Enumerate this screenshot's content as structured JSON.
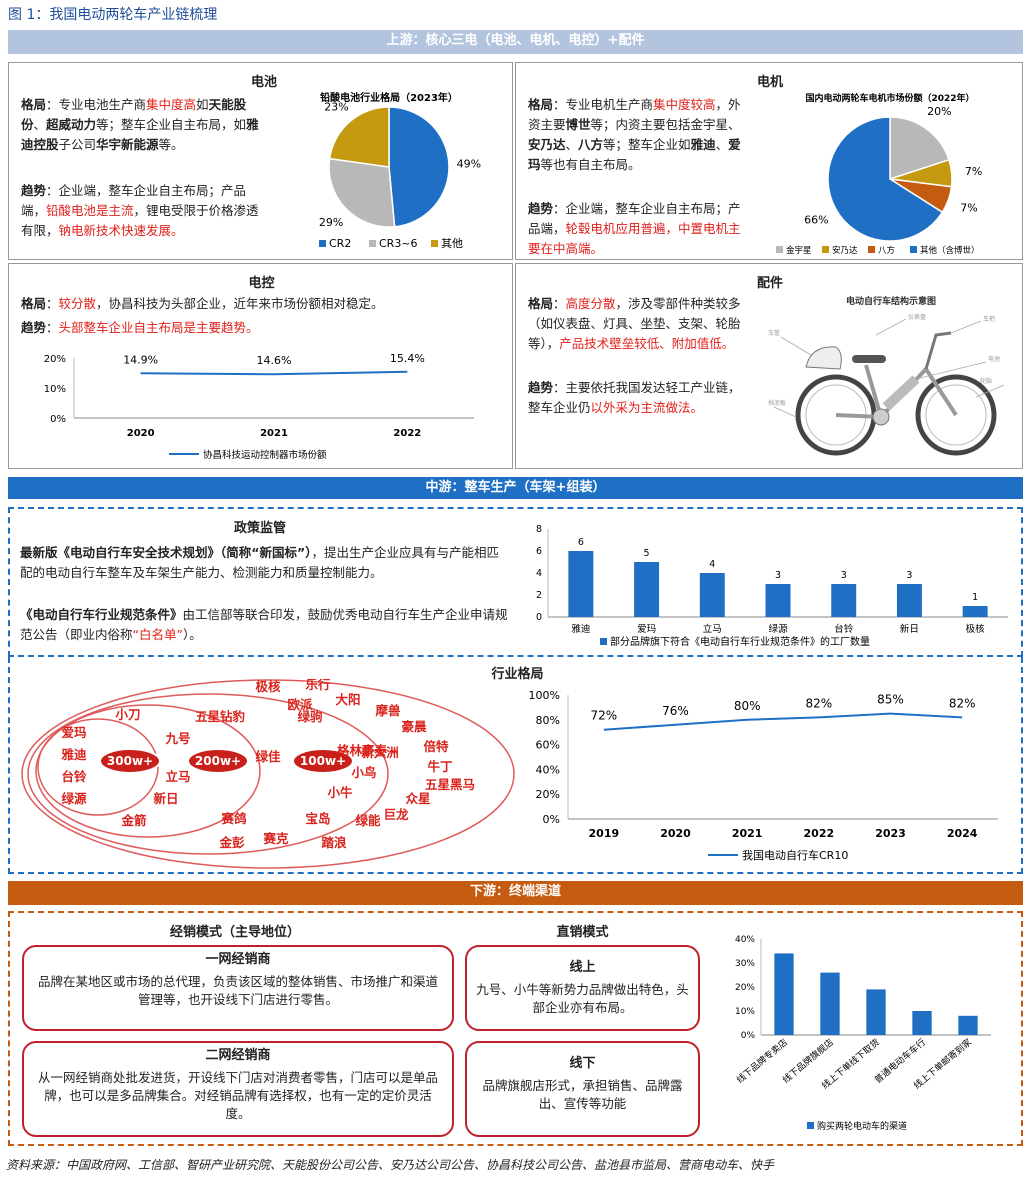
{
  "figure_title": "图 1：我国电动两轮车产业链梳理",
  "colors": {
    "blue": "#1f6fc5",
    "orange": "#c55a11",
    "gold": "#c59a10",
    "grey": "#b8b8b8",
    "red": "#e0201b"
  },
  "upstream": {
    "header": "上游：核心三电（电池、电机、电控）+配件",
    "battery": {
      "title": "电池",
      "p1": [
        {
          "t": "格局",
          "b": true
        },
        {
          "t": "：专业电池生产商"
        },
        {
          "t": "集中度高",
          "r": true
        },
        {
          "t": "如"
        },
        {
          "t": "天能股份",
          "b": true
        },
        {
          "t": "、"
        },
        {
          "t": "超威动力",
          "b": true
        },
        {
          "t": "等；整车企业自主布局，如"
        },
        {
          "t": "雅迪控股",
          "b": true
        },
        {
          "t": "子公司"
        },
        {
          "t": "华宇新能源",
          "b": true
        },
        {
          "t": "等。"
        }
      ],
      "p2": [
        {
          "t": "趋势",
          "b": true
        },
        {
          "t": "：企业端，整车企业自主布局；产品端，"
        },
        {
          "t": "铅酸电池是主流",
          "r": true
        },
        {
          "t": "，锂电受限于价格渗透有限，"
        },
        {
          "t": "钠电新技术快速发展。",
          "r": true
        }
      ]
    },
    "motor": {
      "title": "电机",
      "p1": [
        {
          "t": "格局",
          "b": true
        },
        {
          "t": "：专业电机生产商"
        },
        {
          "t": "集中度较高",
          "r": true
        },
        {
          "t": "，外资主要"
        },
        {
          "t": "博世",
          "b": true
        },
        {
          "t": "等；内资主要包括金宇星、"
        },
        {
          "t": "安乃达",
          "b": true
        },
        {
          "t": "、"
        },
        {
          "t": "八方",
          "b": true
        },
        {
          "t": "等；整车企业如"
        },
        {
          "t": "雅迪",
          "b": true
        },
        {
          "t": "、"
        },
        {
          "t": "爱玛",
          "b": true
        },
        {
          "t": "等也有自主布局。"
        }
      ],
      "p2": [
        {
          "t": "趋势",
          "b": true
        },
        {
          "t": "：企业端，整车企业自主布局；产品端，"
        },
        {
          "t": "轮毂电机应用普遍，中置电机主要在中高端。",
          "r": true
        }
      ]
    },
    "controller": {
      "title": "电控",
      "p1": [
        {
          "t": "格局",
          "b": true
        },
        {
          "t": "："
        },
        {
          "t": "较分散",
          "r": true
        },
        {
          "t": "，协昌科技为头部企业，近年来市场份额相对稳定。"
        }
      ],
      "p2": [
        {
          "t": "趋势",
          "b": true
        },
        {
          "t": "："
        },
        {
          "t": "头部整车企业自主布局是主要趋势。",
          "r": true
        }
      ]
    },
    "parts": {
      "title": "配件",
      "p1": [
        {
          "t": "格局",
          "b": true
        },
        {
          "t": "："
        },
        {
          "t": "高度分散",
          "r": true
        },
        {
          "t": "，涉及零部件种类较多（如仪表盘、灯具、坐垫、支架、轮胎等），"
        },
        {
          "t": "产品技术壁垒较低、附加值低。",
          "r": true
        }
      ],
      "p2": [
        {
          "t": "趋势",
          "b": true
        },
        {
          "t": "：主要依托我国发达轻工产业链，整车企业仍"
        },
        {
          "t": "以外采为主流做法。",
          "r": true
        }
      ],
      "image_title": "电动自行车结构示意图"
    }
  },
  "midstream": {
    "header": "中游：整车生产（车架+组装）",
    "policy": {
      "title": "政策监管",
      "p1": [
        {
          "t": "最新版《电动自行车安全技术规划》（简称“新国标”）",
          "b": true
        },
        {
          "t": "，提出生产企业应具有与产能相匹配的电动自行车整车及车架生产能力、检测能力和质量控制能力。"
        }
      ],
      "p2": [
        {
          "t": "《电动自行车行业规范条件》",
          "b": true
        },
        {
          "t": "由工信部等联合印发，鼓励优秀电动自行车生产企业申请规范公告（即业内俗称"
        },
        {
          "t": "“白名单”",
          "r": true
        },
        {
          "t": "）。"
        }
      ]
    },
    "industry": {
      "title": "行业格局",
      "tiers": [
        "300w+",
        "200w+",
        "100w+"
      ],
      "brands300": [
        "爱玛",
        "雅迪",
        "台铃",
        "绿源"
      ],
      "brands200": [
        "小刀",
        "九号",
        "立马",
        "新日",
        "金箭"
      ],
      "brands100": [
        "五星钻豹",
        "绿佳",
        "绿驹",
        "赛鸽",
        "金彭",
        "赛克",
        "宝岛",
        "踏浪",
        "绿能",
        "小牛",
        "小鸟"
      ],
      "brandsOuter": [
        "极核",
        "乐行",
        "欧派",
        "大阳",
        "格林豪泰",
        "摩兽",
        "豪晨",
        "新大洲",
        "倍特",
        "牛丁",
        "五星黑马",
        "众星",
        "巨龙"
      ]
    }
  },
  "downstream": {
    "header": "下游：终端渠道",
    "distribution": {
      "title": "经销模式（主导地位）",
      "first": {
        "title": "一网经销商",
        "text": "品牌在某地区或市场的总代理，负责该区域的整体销售、市场推广和渠道管理等，也开设线下门店进行零售。"
      },
      "second": {
        "title": "二网经销商",
        "text": "从一网经销商处批发进货，开设线下门店对消费者零售，门店可以是单品牌，也可以是多品牌集合。对经销品牌有选择权，也有一定的定价灵活度。"
      }
    },
    "direct": {
      "title": "直销模式",
      "online": {
        "title": "线上",
        "text": "九号、小牛等新势力品牌做出特色，头部企业亦有布局。"
      },
      "offline": {
        "title": "线下",
        "text": "品牌旗舰店形式，承担销售、品牌露出、宣传等功能"
      }
    }
  },
  "source": "资料来源：中国政府网、工信部、智研产业研究院、天能股份公司公告、安乃达公司公告、协昌科技公司公告、盐池县市监局、营商电动车、快手",
  "chart_data": [
    {
      "id": "lead_acid",
      "type": "pie",
      "title": "铅酸电池行业格局（2023年）",
      "categories": [
        "CR2",
        "CR3~6",
        "其他"
      ],
      "values": [
        49,
        29,
        23
      ],
      "labels": [
        "49%",
        "29%",
        "23%"
      ]
    },
    {
      "id": "motor_share",
      "type": "pie",
      "title": "国内电动两轮车电机市场份额（2022年）",
      "categories": [
        "金宇星",
        "安乃达",
        "八方",
        "其他（含博世）"
      ],
      "values": [
        20,
        7,
        7,
        66
      ],
      "labels": [
        "20%",
        "7%",
        "7%",
        "66%"
      ]
    },
    {
      "id": "xiechang",
      "type": "line",
      "x": [
        "2020",
        "2021",
        "2022"
      ],
      "values": [
        14.9,
        14.6,
        15.4
      ],
      "labels": [
        "14.9%",
        "14.6%",
        "15.4%"
      ],
      "yticks": [
        "0%",
        "10%",
        "20%"
      ],
      "ylim": [
        0,
        20
      ],
      "legend": "协昌科技运动控制器市场份额"
    },
    {
      "id": "factories",
      "type": "bar",
      "categories": [
        "雅迪",
        "爱玛",
        "立马",
        "绿源",
        "台铃",
        "新日",
        "极核"
      ],
      "values": [
        6,
        5,
        4,
        3,
        3,
        3,
        1
      ],
      "yticks": [
        "0",
        "2",
        "4",
        "6",
        "8"
      ],
      "ylim": [
        0,
        8
      ],
      "legend": "部分品牌旗下符合《电动自行车行业规范条件》的工厂数量"
    },
    {
      "id": "cr10",
      "type": "line",
      "x": [
        "2019",
        "2020",
        "2021",
        "2022",
        "2023",
        "2024"
      ],
      "values": [
        72,
        76,
        80,
        82,
        85,
        82
      ],
      "labels": [
        "72%",
        "76%",
        "80%",
        "82%",
        "85%",
        "82%"
      ],
      "yticks": [
        "0%",
        "20%",
        "40%",
        "60%",
        "80%",
        "100%"
      ],
      "ylim": [
        0,
        100
      ],
      "legend": "我国电动自行车CR10"
    },
    {
      "id": "channels",
      "type": "bar",
      "categories": [
        "线下品牌专卖店",
        "线下品牌旗舰店",
        "线上下单线下取货",
        "普通电动车车行",
        "线上下单邮寄到家"
      ],
      "values": [
        34,
        26,
        19,
        10,
        8
      ],
      "yticks": [
        "0%",
        "10%",
        "20%",
        "30%",
        "40%"
      ],
      "ylim": [
        0,
        40
      ],
      "legend": "购买两轮电动车的渠道"
    }
  ]
}
